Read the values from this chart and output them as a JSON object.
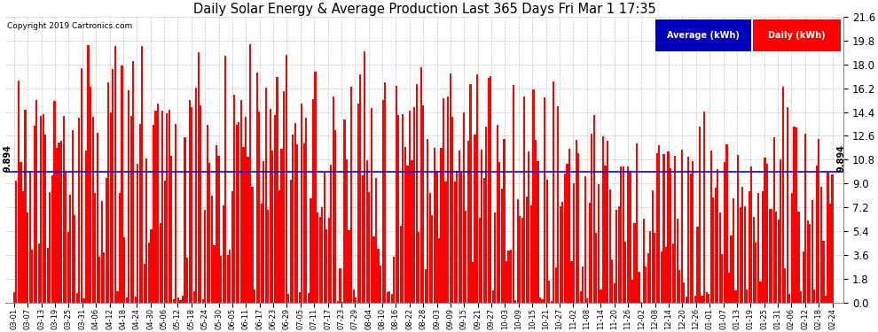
{
  "title": "Daily Solar Energy & Average Production Last 365 Days Fri Mar 1 17:35",
  "copyright_text": "Copyright 2019 Cartronics.com",
  "average_value": 9.894,
  "average_label": "9.894",
  "bar_color": "#ff0000",
  "average_line_color": "#0000ff",
  "background_color": "#ffffff",
  "grid_color": "#aaaaaa",
  "ylim_min": 0.0,
  "ylim_max": 21.6,
  "ytick_step": 1.8,
  "legend_average_color": "#0000bb",
  "legend_daily_color": "#ff0000",
  "legend_text_color": "#ffffff",
  "x_labels": [
    "03-01",
    "03-07",
    "03-13",
    "03-19",
    "03-25",
    "03-31",
    "04-06",
    "04-12",
    "04-18",
    "04-24",
    "04-30",
    "05-06",
    "05-12",
    "05-18",
    "05-24",
    "05-30",
    "06-05",
    "06-11",
    "06-17",
    "06-23",
    "06-29",
    "07-05",
    "07-11",
    "07-17",
    "07-23",
    "07-29",
    "08-04",
    "08-10",
    "08-16",
    "08-22",
    "08-28",
    "09-03",
    "09-09",
    "09-15",
    "09-21",
    "09-27",
    "10-03",
    "10-09",
    "10-15",
    "10-21",
    "10-27",
    "11-02",
    "11-08",
    "11-14",
    "11-20",
    "11-26",
    "12-02",
    "12-08",
    "12-14",
    "12-20",
    "12-26",
    "01-01",
    "01-07",
    "01-13",
    "01-19",
    "01-25",
    "01-31",
    "02-06",
    "02-12",
    "02-18",
    "02-24"
  ],
  "num_bars": 365,
  "seed": 7
}
